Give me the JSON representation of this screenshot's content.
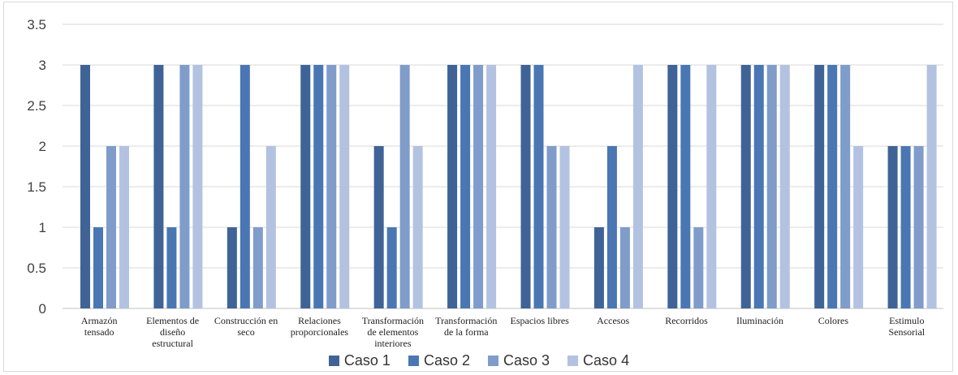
{
  "chart_data": {
    "type": "bar",
    "title": "",
    "xlabel": "",
    "ylabel": "",
    "ylim": [
      0,
      3.5
    ],
    "yticks": [
      "0",
      "0.5",
      "1",
      "1.5",
      "2",
      "2.5",
      "3",
      "3.5"
    ],
    "grid": true,
    "legend_position": "bottom",
    "categories": [
      [
        "Armazón",
        "tensado"
      ],
      [
        "Elementos de",
        "diseño",
        "estructural"
      ],
      [
        "Construcción en",
        "seco"
      ],
      [
        "Relaciones",
        "proporcionales"
      ],
      [
        "Transformación",
        "de elementos",
        "interiores"
      ],
      [
        "Transformación",
        "de la forma"
      ],
      [
        "Espacios libres"
      ],
      [
        "Accesos"
      ],
      [
        "Recorridos"
      ],
      [
        "Iluminación"
      ],
      [
        "Colores"
      ],
      [
        "Estimulo",
        "Sensorial"
      ]
    ],
    "series": [
      {
        "name": "Caso 1",
        "color": "#3f6396",
        "values": [
          3,
          3,
          1,
          3,
          2,
          3,
          3,
          1,
          3,
          3,
          3,
          2
        ]
      },
      {
        "name": "Caso 2",
        "color": "#4a77b3",
        "values": [
          1,
          1,
          3,
          3,
          1,
          3,
          3,
          2,
          3,
          3,
          3,
          2
        ]
      },
      {
        "name": "Caso 3",
        "color": "#7f9cca",
        "values": [
          2,
          3,
          1,
          3,
          3,
          3,
          2,
          1,
          1,
          3,
          3,
          2
        ]
      },
      {
        "name": "Caso 4",
        "color": "#b3c2e0",
        "values": [
          2,
          3,
          2,
          3,
          2,
          3,
          2,
          3,
          3,
          3,
          2,
          3
        ]
      }
    ]
  }
}
